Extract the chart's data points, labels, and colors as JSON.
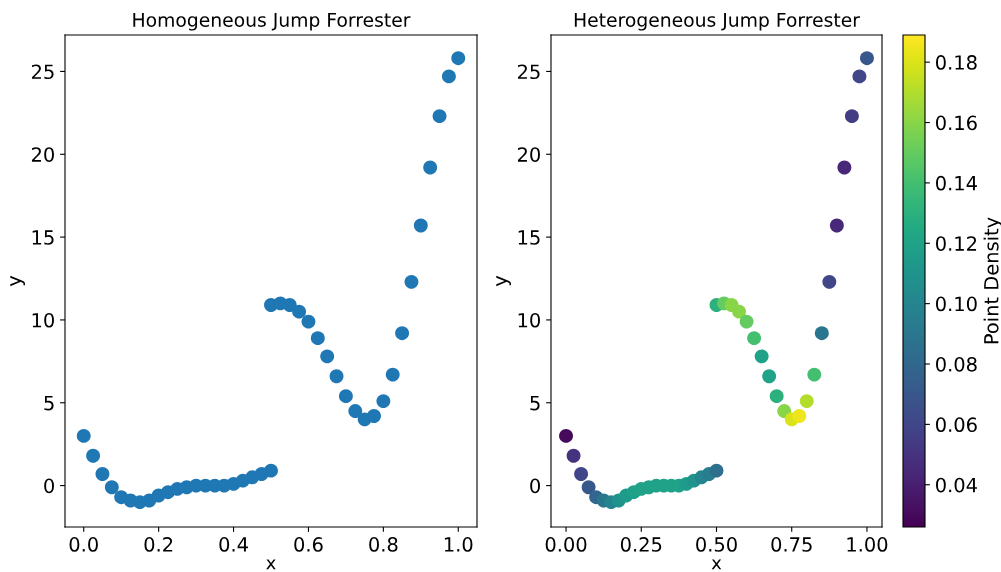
{
  "chart_data": [
    {
      "type": "scatter",
      "title": "Homogeneous Jump Forrester",
      "xlabel": "x",
      "ylabel": "y",
      "marker": "circle",
      "grid": false,
      "xlim": [
        -0.05,
        1.05
      ],
      "ylim": [
        -2.5,
        27.2
      ],
      "xticks": [
        {
          "value": 0,
          "label": "0.0"
        },
        0.2,
        0.4,
        0.6,
        0.8,
        {
          "value": 1,
          "label": "1.0"
        }
      ],
      "yticks": [
        0,
        5,
        10,
        15,
        20,
        25
      ],
      "series": [
        {
          "color": "#1f77b4",
          "x": [
            0,
            0.025,
            0.05,
            0.075,
            0.1,
            0.125,
            0.15,
            0.175,
            0.2,
            0.225,
            0.25,
            0.275,
            0.3,
            0.325,
            0.35,
            0.375,
            0.4,
            0.425,
            0.45,
            0.475,
            0.5,
            0.5,
            0.525,
            0.55,
            0.575,
            0.6,
            0.625,
            0.65,
            0.675,
            0.7,
            0.725,
            0.75,
            0.775,
            0.8,
            0.825,
            0.85,
            0.875,
            0.9,
            0.925,
            0.95,
            0.975,
            1.0
          ],
          "values": [
            3.0,
            1.8,
            0.7,
            -0.1,
            -0.7,
            -0.9,
            -1.0,
            -0.9,
            -0.6,
            -0.4,
            -0.2,
            -0.1,
            0.0,
            0.0,
            0.0,
            0.0,
            0.1,
            0.3,
            0.5,
            0.7,
            0.9,
            10.9,
            11.0,
            10.9,
            10.5,
            9.9,
            8.9,
            7.8,
            6.6,
            5.4,
            4.5,
            4.0,
            4.2,
            5.1,
            6.7,
            9.2,
            12.3,
            15.7,
            19.2,
            22.3,
            24.7,
            25.8
          ]
        }
      ]
    },
    {
      "type": "scatter",
      "title": "Heterogeneous Jump Forrester",
      "xlabel": "x",
      "ylabel": "y",
      "clabel": "Point Density",
      "marker": "circle",
      "grid": false,
      "xlim": [
        -0.05,
        1.05
      ],
      "ylim": [
        -2.5,
        27.2
      ],
      "xticks": [
        {
          "value": 0,
          "label": "0.00"
        },
        0.25,
        {
          "value": 0.5,
          "label": "0.50"
        },
        0.75,
        {
          "value": 1,
          "label": "1.00"
        }
      ],
      "yticks": [
        0,
        5,
        10,
        15,
        20,
        25
      ],
      "clim": [
        0.026,
        0.189
      ],
      "cticks": [
        0.04,
        0.06,
        0.08,
        {
          "value": 0.1,
          "label": "0.10"
        },
        0.12,
        0.14,
        0.16,
        0.18
      ],
      "series": [
        {
          "x": [
            0,
            0.025,
            0.05,
            0.075,
            0.1,
            0.125,
            0.15,
            0.175,
            0.2,
            0.225,
            0.25,
            0.275,
            0.3,
            0.325,
            0.35,
            0.375,
            0.4,
            0.425,
            0.45,
            0.475,
            0.5,
            0.5,
            0.525,
            0.55,
            0.575,
            0.6,
            0.625,
            0.65,
            0.675,
            0.7,
            0.725,
            0.75,
            0.775,
            0.8,
            0.825,
            0.85,
            0.875,
            0.9,
            0.925,
            0.95,
            0.975,
            1.0
          ],
          "values": [
            3.0,
            1.8,
            0.7,
            -0.1,
            -0.7,
            -0.9,
            -1.0,
            -0.9,
            -0.6,
            -0.4,
            -0.2,
            -0.1,
            0.0,
            0.0,
            0.0,
            0.0,
            0.1,
            0.3,
            0.5,
            0.7,
            0.9,
            10.9,
            11.0,
            10.9,
            10.5,
            9.9,
            8.9,
            7.8,
            6.6,
            5.4,
            4.5,
            4.0,
            4.2,
            5.1,
            6.7,
            9.2,
            12.3,
            15.7,
            19.2,
            22.3,
            24.7,
            25.8
          ],
          "cvalues": [
            0.03,
            0.05,
            0.06,
            0.07,
            0.08,
            0.09,
            0.1,
            0.11,
            0.115,
            0.118,
            0.12,
            0.12,
            0.12,
            0.12,
            0.12,
            0.12,
            0.115,
            0.11,
            0.1,
            0.095,
            0.085,
            0.13,
            0.15,
            0.16,
            0.16,
            0.15,
            0.14,
            0.12,
            0.12,
            0.13,
            0.16,
            0.18,
            0.185,
            0.17,
            0.14,
            0.09,
            0.06,
            0.045,
            0.045,
            0.055,
            0.06,
            0.07
          ]
        }
      ]
    }
  ]
}
